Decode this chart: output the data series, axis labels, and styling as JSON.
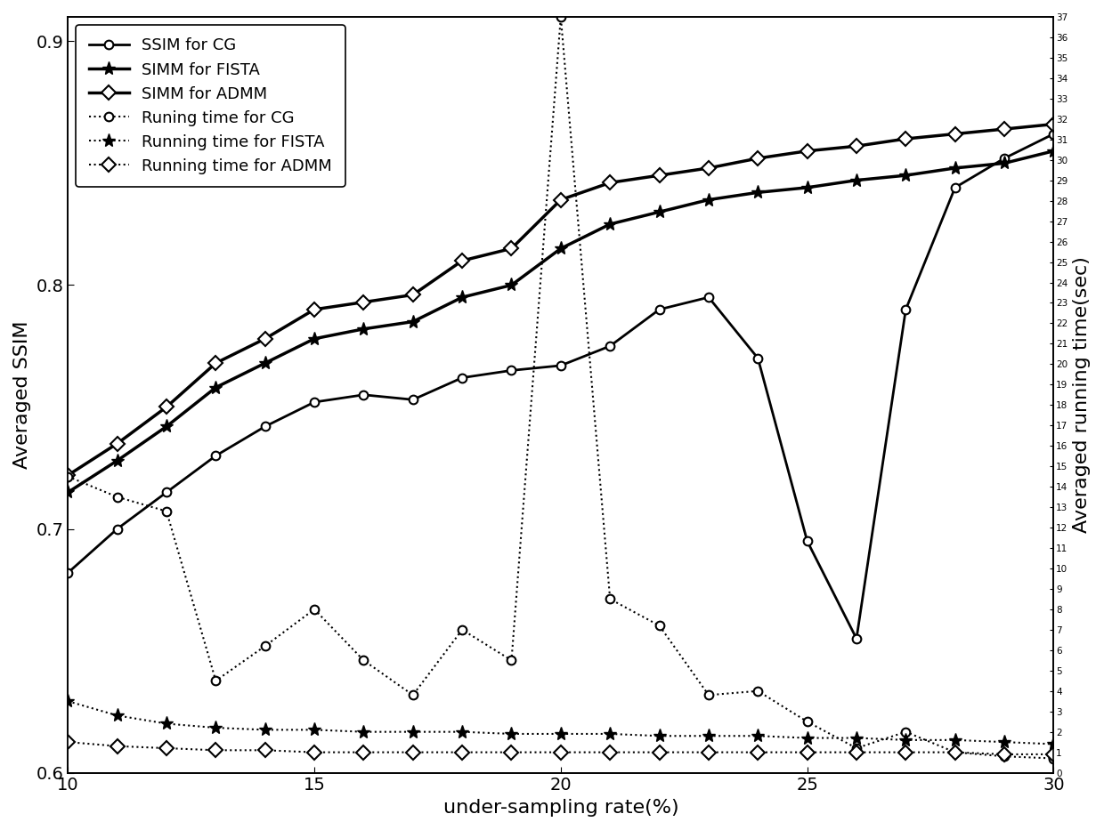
{
  "x": [
    10,
    11,
    12,
    13,
    14,
    15,
    16,
    17,
    18,
    19,
    20,
    21,
    22,
    23,
    24,
    25,
    26,
    27,
    28,
    29,
    30
  ],
  "ssim_cg": [
    0.682,
    0.7,
    0.715,
    0.73,
    0.742,
    0.752,
    0.755,
    0.753,
    0.762,
    0.765,
    0.767,
    0.775,
    0.79,
    0.795,
    0.77,
    0.695,
    0.655,
    0.79,
    0.84,
    0.852,
    0.862
  ],
  "ssim_fista": [
    0.715,
    0.728,
    0.742,
    0.758,
    0.768,
    0.778,
    0.782,
    0.785,
    0.795,
    0.8,
    0.815,
    0.825,
    0.83,
    0.835,
    0.838,
    0.84,
    0.843,
    0.845,
    0.848,
    0.85,
    0.855
  ],
  "ssim_admm": [
    0.722,
    0.735,
    0.75,
    0.768,
    0.778,
    0.79,
    0.793,
    0.796,
    0.81,
    0.815,
    0.835,
    0.842,
    0.845,
    0.848,
    0.852,
    0.855,
    0.857,
    0.86,
    0.862,
    0.864,
    0.866
  ],
  "time_cg": [
    14.5,
    13.5,
    12.8,
    4.5,
    6.2,
    8.0,
    5.5,
    3.8,
    7.0,
    5.5,
    37.0,
    8.5,
    7.2,
    3.8,
    4.0,
    2.5,
    1.2,
    2.0,
    1.0,
    0.8,
    0.7
  ],
  "time_fista": [
    3.5,
    2.8,
    2.4,
    2.2,
    2.1,
    2.1,
    2.0,
    2.0,
    2.0,
    1.9,
    1.9,
    1.9,
    1.8,
    1.8,
    1.8,
    1.7,
    1.7,
    1.6,
    1.6,
    1.5,
    1.4
  ],
  "time_admm": [
    1.5,
    1.3,
    1.2,
    1.1,
    1.1,
    1.0,
    1.0,
    1.0,
    1.0,
    1.0,
    1.0,
    1.0,
    1.0,
    1.0,
    1.0,
    1.0,
    1.0,
    1.0,
    1.0,
    0.9,
    0.9
  ],
  "ylabel_left": "Averaged SSIM",
  "ylabel_right": "Averaged running time(sec)",
  "xlabel": "under-sampling rate(%)",
  "ylim_left": [
    0.6,
    0.91
  ],
  "ylim_right": [
    0,
    37
  ],
  "xlim": [
    10,
    30
  ],
  "legend_labels": [
    "SSIM for CG",
    "SIMM for FISTA",
    "SIMM for ADMM",
    "Runing time for CG",
    "Running time for FISTA",
    "Running time for ADMM"
  ],
  "color": "#000000",
  "bg_color": "#ffffff"
}
